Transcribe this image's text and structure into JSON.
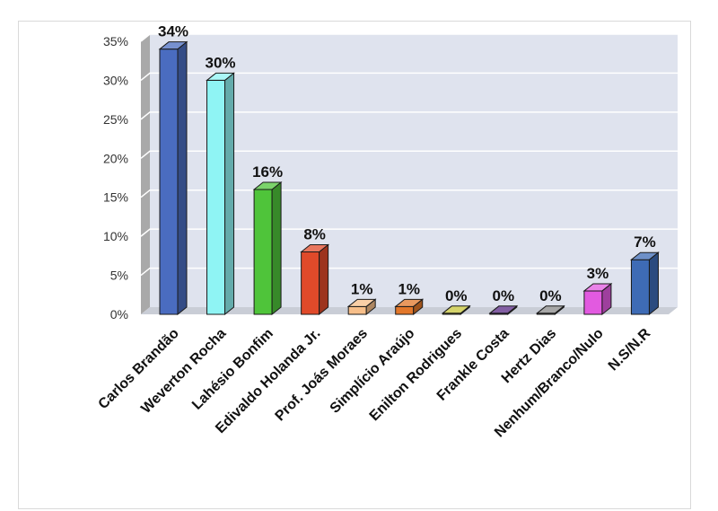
{
  "chart_data": {
    "type": "bar",
    "categories": [
      "Carlos Brandão",
      "Weverton Rocha",
      "Lahésio Bonfim",
      "Edivaldo Holanda Jr.",
      "Prof. Joás Moraes",
      "Simplício Araújo",
      "Enilton Rodrigues",
      "Frankle Costa",
      "Hertz Dias",
      "Nenhum/Branco/Nulo",
      "N.S/N.R"
    ],
    "values": [
      34,
      30,
      16,
      8,
      1,
      1,
      0,
      0,
      0,
      3,
      7
    ],
    "value_labels": [
      "34%",
      "30%",
      "16%",
      "8%",
      "1%",
      "1%",
      "0%",
      "0%",
      "0%",
      "3%",
      "7%"
    ],
    "y_tick_labels": [
      "0%",
      "5%",
      "10%",
      "15%",
      "20%",
      "25%",
      "30%",
      "35%"
    ],
    "ylim": [
      0,
      35
    ],
    "grid": true,
    "legend": "none",
    "title": "",
    "xlabel": "",
    "ylabel": "",
    "colors": [
      "#4a6cc0",
      "#8ff4f4",
      "#4fc43a",
      "#e04a2a",
      "#f7bf8a",
      "#e2772a",
      "#c7c63a",
      "#5a2a86",
      "#8a8a8a",
      "#e25ae0",
      "#3e6bb5"
    ],
    "plot_background": "#dfe3ee"
  }
}
